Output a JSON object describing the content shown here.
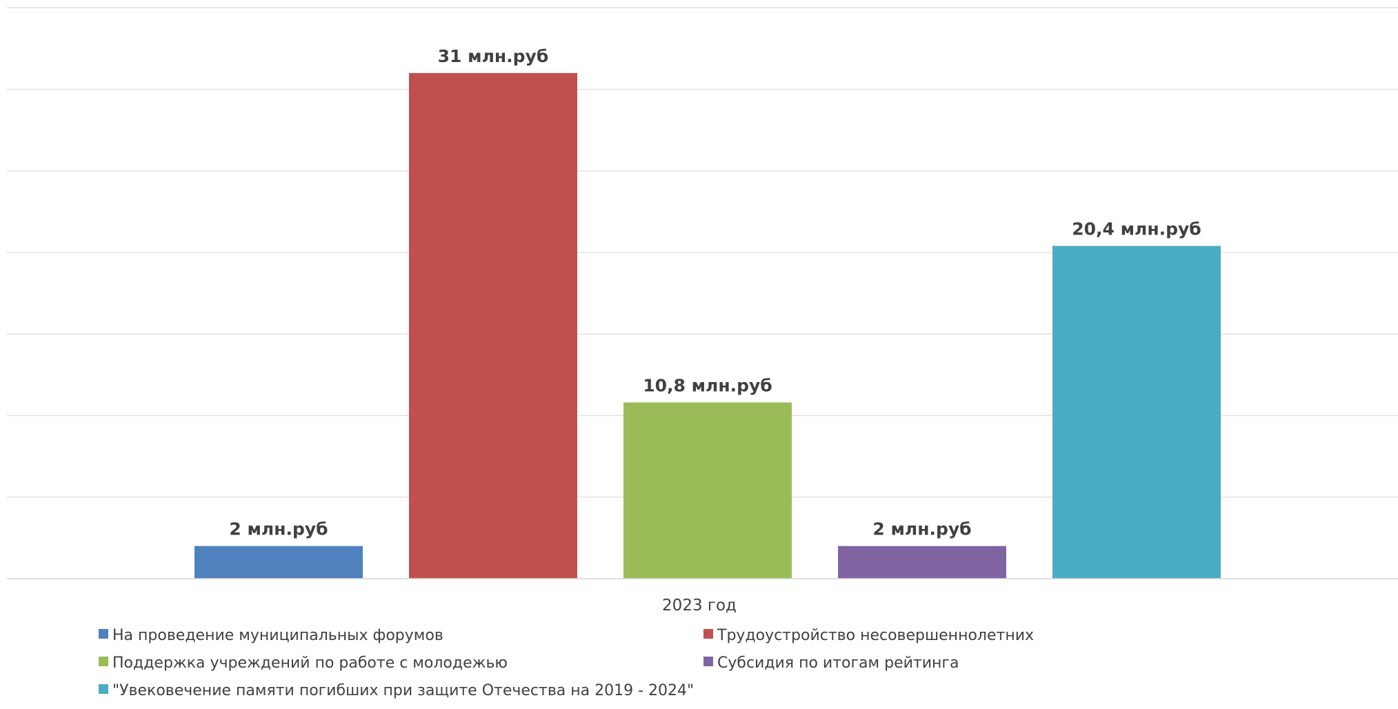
{
  "chart_data": {
    "type": "bar",
    "title": "",
    "xlabel": "",
    "ylabel": "",
    "categories": [
      "2023 год"
    ],
    "ylim": [
      0,
      35
    ],
    "gridline_step": 5,
    "grid": true,
    "legend_position": "bottom",
    "series": [
      {
        "name": "На проведение муниципальных форумов",
        "values": [
          2
        ],
        "label": "2 млн.руб",
        "color": "#4f81bd"
      },
      {
        "name": "Трудоустройство несовершеннолетних",
        "values": [
          31
        ],
        "label": "31 млн.руб",
        "color": "#c0504d"
      },
      {
        "name": "Поддержка учреждений по работе с молодежью",
        "values": [
          10.8
        ],
        "label": "10,8 млн.руб",
        "color": "#9bbb59"
      },
      {
        "name": "Субсидия по итогам рейтинга",
        "values": [
          2
        ],
        "label": "2 млн.руб",
        "color": "#8064a2"
      },
      {
        "name": "\"Увековечение памяти погибших при защите Отечества на 2019 - 2024\"",
        "values": [
          20.4
        ],
        "label": "20,4 млн.руб",
        "color": "#4bacc6"
      }
    ]
  }
}
